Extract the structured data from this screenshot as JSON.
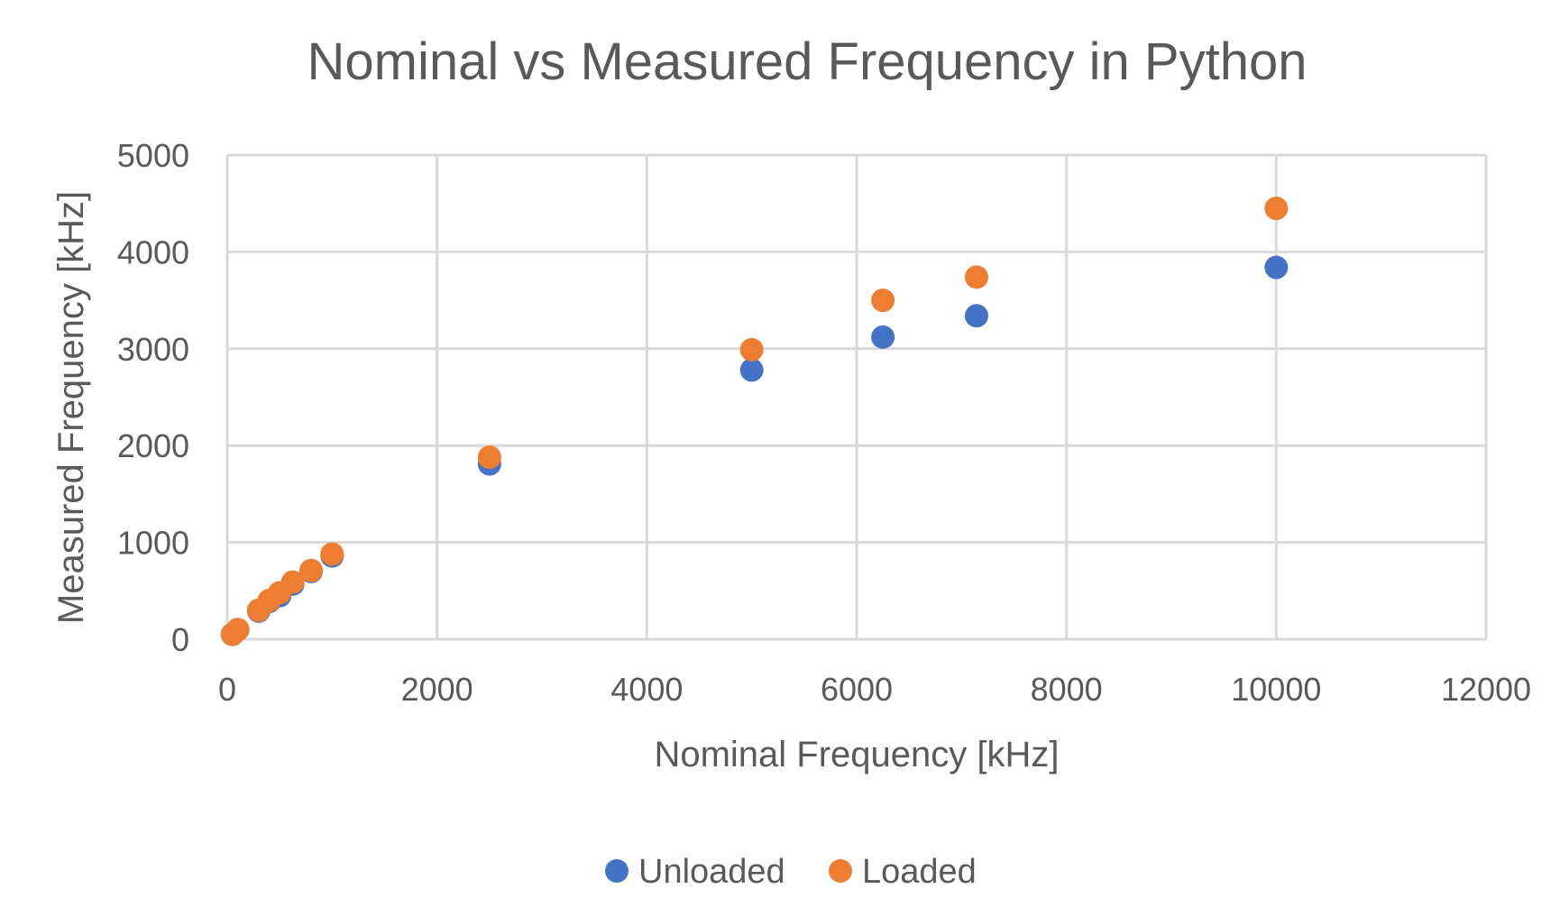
{
  "chart_data": {
    "type": "scatter",
    "title": "Nominal vs Measured Frequency in Python",
    "xlabel": "Nominal Frequency [kHz]",
    "ylabel": "Measured Frequency [kHz]",
    "xlim": [
      0,
      12000
    ],
    "ylim": [
      0,
      5000
    ],
    "xticks": [
      "0",
      "2000",
      "4000",
      "6000",
      "8000",
      "10000",
      "12000"
    ],
    "yticks": [
      "0",
      "1000",
      "2000",
      "3000",
      "4000",
      "5000"
    ],
    "grid": true,
    "legend_position": "bottom",
    "series": [
      {
        "name": "Unloaded",
        "color": "#4472C4",
        "points": [
          {
            "x": 50,
            "y": 50
          },
          {
            "x": 100,
            "y": 100
          },
          {
            "x": 300,
            "y": 290
          },
          {
            "x": 400,
            "y": 390
          },
          {
            "x": 500,
            "y": 450
          },
          {
            "x": 625,
            "y": 570
          },
          {
            "x": 800,
            "y": 700
          },
          {
            "x": 1000,
            "y": 860
          },
          {
            "x": 2500,
            "y": 1810
          },
          {
            "x": 5000,
            "y": 2780
          },
          {
            "x": 6250,
            "y": 3120
          },
          {
            "x": 7143,
            "y": 3340
          },
          {
            "x": 10000,
            "y": 3840
          }
        ]
      },
      {
        "name": "Loaded",
        "color": "#ED7D31",
        "points": [
          {
            "x": 50,
            "y": 50
          },
          {
            "x": 100,
            "y": 100
          },
          {
            "x": 300,
            "y": 300
          },
          {
            "x": 400,
            "y": 400
          },
          {
            "x": 500,
            "y": 480
          },
          {
            "x": 625,
            "y": 590
          },
          {
            "x": 800,
            "y": 710
          },
          {
            "x": 1000,
            "y": 880
          },
          {
            "x": 2500,
            "y": 1880
          },
          {
            "x": 5000,
            "y": 2990
          },
          {
            "x": 6250,
            "y": 3500
          },
          {
            "x": 7143,
            "y": 3740
          },
          {
            "x": 10000,
            "y": 4450
          }
        ]
      }
    ]
  }
}
